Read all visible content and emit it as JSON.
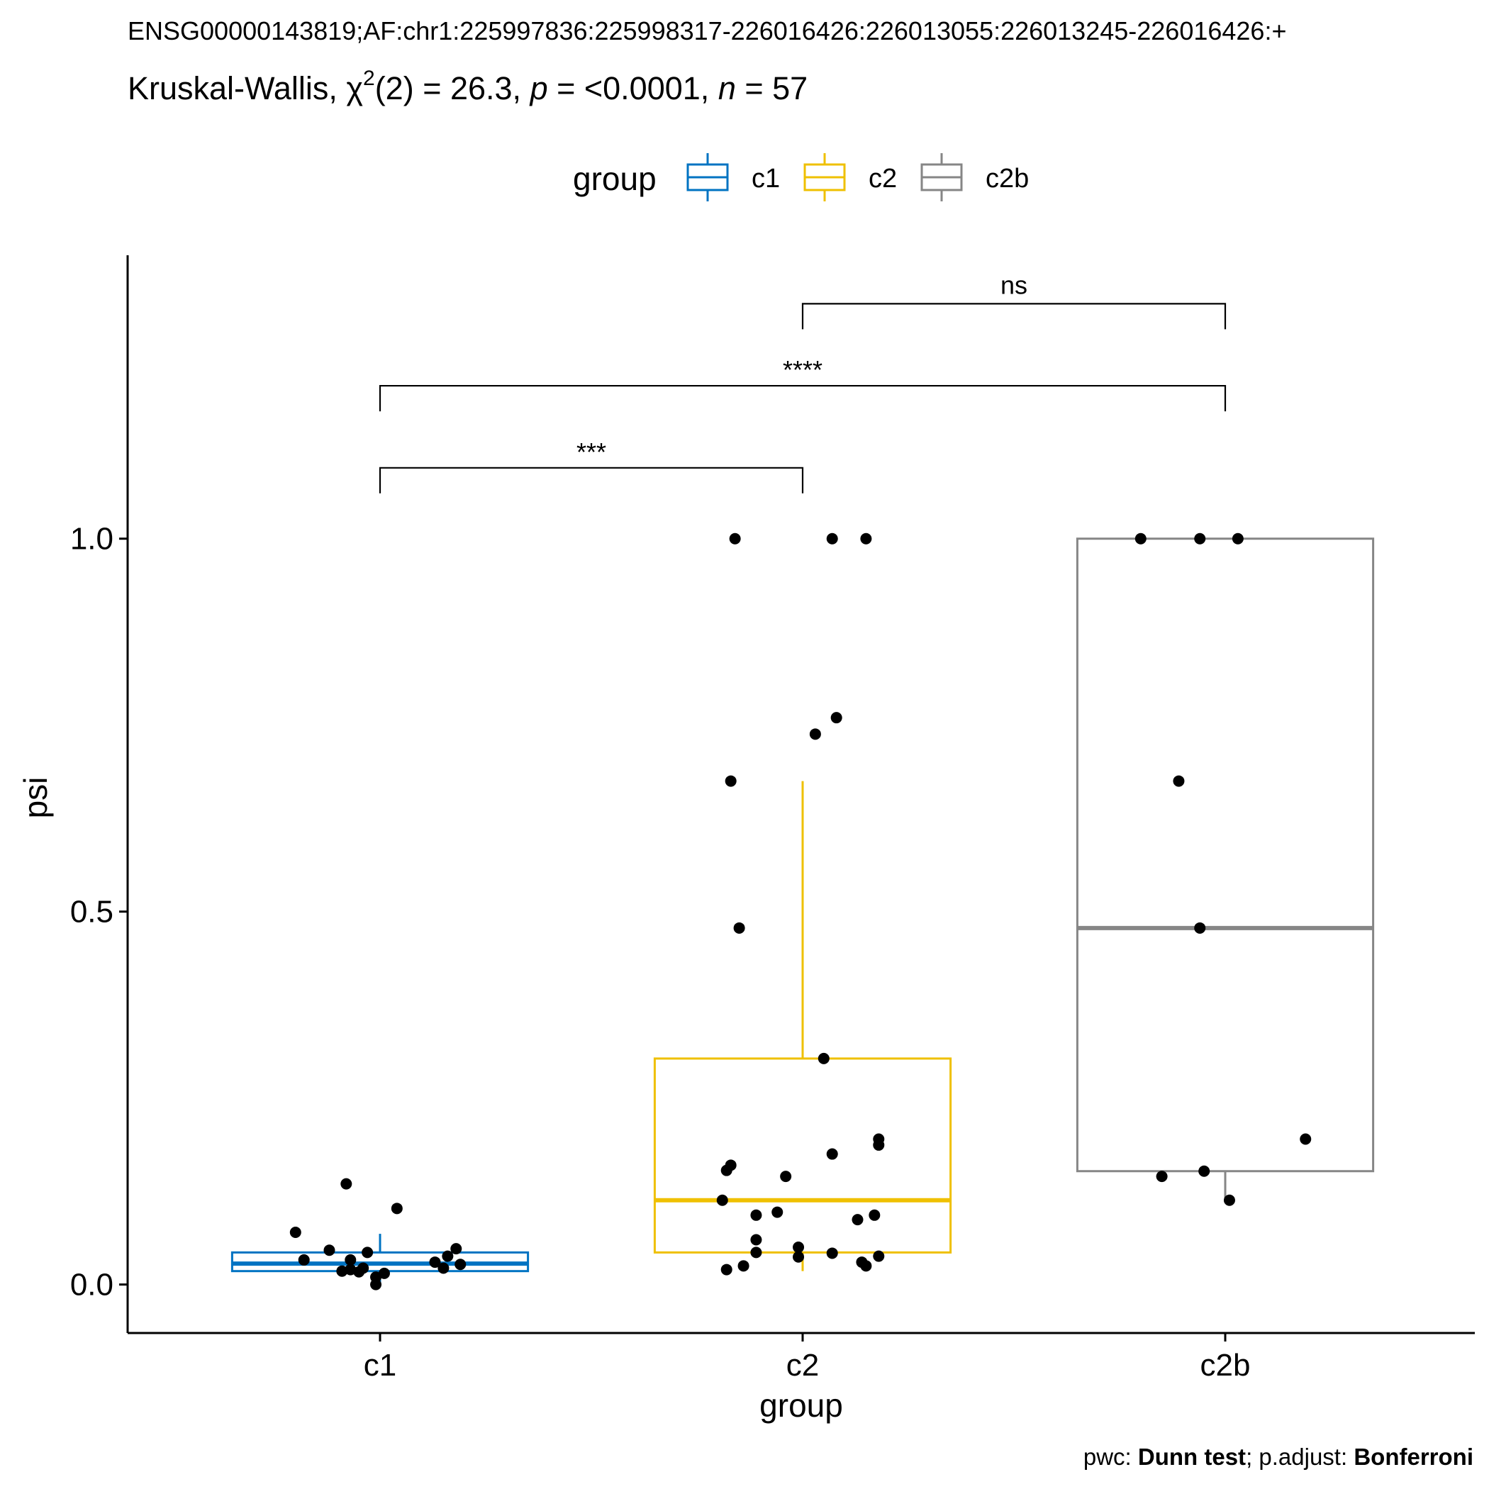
{
  "chart_data": {
    "type": "box",
    "title": "ENSG00000143819;AF:chr1:225997836:225998317-226016426:226013055:226013245-226016426:+",
    "subtitle": {
      "prefix": "Kruskal-Wallis, ",
      "chi": "χ",
      "sup": "2",
      "df": "(2) = 26.3, ",
      "p_label": "p",
      "p_value": " = <0.0001, ",
      "n_label": "n",
      "n_value": " = 57"
    },
    "caption": {
      "pwc_label": "pwc: ",
      "pwc_value": "Dunn test",
      "sep": "; p.adjust: ",
      "adjust_value": "Bonferroni"
    },
    "xlabel": "group",
    "ylabel": "psi",
    "ylim": [
      -0.065,
      1.38
    ],
    "yticks": [
      0.0,
      0.5,
      1.0
    ],
    "ytick_labels": [
      "0.0",
      "0.5",
      "1.0"
    ],
    "categories": [
      "c1",
      "c2",
      "c2b"
    ],
    "legend": {
      "title": "group",
      "position": "top",
      "entries": [
        "c1",
        "c2",
        "c2b"
      ]
    },
    "colors": {
      "c1": "#0073C2",
      "c2": "#EFC000",
      "c2b": "#868686"
    },
    "boxes": [
      {
        "group": "c1",
        "q1": 0.018,
        "median": 0.028,
        "q3": 0.043,
        "whisker_low": 0.0,
        "whisker_high": 0.068
      },
      {
        "group": "c2",
        "q1": 0.043,
        "median": 0.113,
        "q3": 0.303,
        "whisker_low": 0.018,
        "whisker_high": 0.675
      },
      {
        "group": "c2b",
        "q1": 0.152,
        "median": 0.478,
        "q3": 1.0,
        "whisker_low": 0.113,
        "whisker_high": 1.0
      }
    ],
    "points": [
      {
        "group": "c1",
        "x_offset": -0.2,
        "y": 0.07
      },
      {
        "group": "c1",
        "x_offset": -0.08,
        "y": 0.135
      },
      {
        "group": "c1",
        "x_offset": 0.04,
        "y": 0.102
      },
      {
        "group": "c1",
        "x_offset": -0.18,
        "y": 0.033
      },
      {
        "group": "c1",
        "x_offset": -0.12,
        "y": 0.046
      },
      {
        "group": "c1",
        "x_offset": -0.07,
        "y": 0.033
      },
      {
        "group": "c1",
        "x_offset": -0.03,
        "y": 0.043
      },
      {
        "group": "c1",
        "x_offset": -0.09,
        "y": 0.018
      },
      {
        "group": "c1",
        "x_offset": -0.07,
        "y": 0.02
      },
      {
        "group": "c1",
        "x_offset": -0.04,
        "y": 0.022
      },
      {
        "group": "c1",
        "x_offset": -0.05,
        "y": 0.017
      },
      {
        "group": "c1",
        "x_offset": -0.01,
        "y": 0.01
      },
      {
        "group": "c1",
        "x_offset": 0.01,
        "y": 0.015
      },
      {
        "group": "c1",
        "x_offset": -0.01,
        "y": 0.0
      },
      {
        "group": "c1",
        "x_offset": 0.13,
        "y": 0.03
      },
      {
        "group": "c1",
        "x_offset": 0.15,
        "y": 0.022
      },
      {
        "group": "c1",
        "x_offset": 0.16,
        "y": 0.038
      },
      {
        "group": "c1",
        "x_offset": 0.18,
        "y": 0.048
      },
      {
        "group": "c1",
        "x_offset": 0.19,
        "y": 0.027
      },
      {
        "group": "c2",
        "x_offset": -0.16,
        "y": 1.0
      },
      {
        "group": "c2",
        "x_offset": 0.07,
        "y": 1.0
      },
      {
        "group": "c2",
        "x_offset": 0.15,
        "y": 1.0
      },
      {
        "group": "c2",
        "x_offset": 0.08,
        "y": 0.76
      },
      {
        "group": "c2",
        "x_offset": 0.03,
        "y": 0.738
      },
      {
        "group": "c2",
        "x_offset": -0.17,
        "y": 0.675
      },
      {
        "group": "c2",
        "x_offset": -0.15,
        "y": 0.478
      },
      {
        "group": "c2",
        "x_offset": 0.05,
        "y": 0.303
      },
      {
        "group": "c2",
        "x_offset": 0.18,
        "y": 0.195
      },
      {
        "group": "c2",
        "x_offset": 0.18,
        "y": 0.187
      },
      {
        "group": "c2",
        "x_offset": 0.07,
        "y": 0.175
      },
      {
        "group": "c2",
        "x_offset": -0.18,
        "y": 0.153
      },
      {
        "group": "c2",
        "x_offset": -0.17,
        "y": 0.16
      },
      {
        "group": "c2",
        "x_offset": -0.04,
        "y": 0.145
      },
      {
        "group": "c2",
        "x_offset": -0.19,
        "y": 0.113
      },
      {
        "group": "c2",
        "x_offset": -0.06,
        "y": 0.097
      },
      {
        "group": "c2",
        "x_offset": -0.11,
        "y": 0.093
      },
      {
        "group": "c2",
        "x_offset": 0.13,
        "y": 0.087
      },
      {
        "group": "c2",
        "x_offset": 0.17,
        "y": 0.093
      },
      {
        "group": "c2",
        "x_offset": -0.11,
        "y": 0.06
      },
      {
        "group": "c2",
        "x_offset": -0.11,
        "y": 0.043
      },
      {
        "group": "c2",
        "x_offset": -0.01,
        "y": 0.05
      },
      {
        "group": "c2",
        "x_offset": -0.01,
        "y": 0.037
      },
      {
        "group": "c2",
        "x_offset": 0.07,
        "y": 0.042
      },
      {
        "group": "c2",
        "x_offset": 0.18,
        "y": 0.038
      },
      {
        "group": "c2",
        "x_offset": 0.14,
        "y": 0.03
      },
      {
        "group": "c2",
        "x_offset": 0.15,
        "y": 0.025
      },
      {
        "group": "c2",
        "x_offset": -0.14,
        "y": 0.025
      },
      {
        "group": "c2",
        "x_offset": -0.18,
        "y": 0.02
      },
      {
        "group": "c2b",
        "x_offset": -0.2,
        "y": 1.0
      },
      {
        "group": "c2b",
        "x_offset": -0.06,
        "y": 1.0
      },
      {
        "group": "c2b",
        "x_offset": 0.03,
        "y": 1.0
      },
      {
        "group": "c2b",
        "x_offset": -0.11,
        "y": 0.675
      },
      {
        "group": "c2b",
        "x_offset": -0.06,
        "y": 0.478
      },
      {
        "group": "c2b",
        "x_offset": 0.19,
        "y": 0.195
      },
      {
        "group": "c2b",
        "x_offset": -0.05,
        "y": 0.152
      },
      {
        "group": "c2b",
        "x_offset": -0.15,
        "y": 0.145
      },
      {
        "group": "c2b",
        "x_offset": 0.01,
        "y": 0.113
      }
    ],
    "comparisons": [
      {
        "group1": "c1",
        "group2": "c2",
        "label": "***",
        "y": 1.095
      },
      {
        "group1": "c1",
        "group2": "c2b",
        "label": "****",
        "y": 1.205
      },
      {
        "group1": "c2",
        "group2": "c2b",
        "label": "ns",
        "y": 1.315
      }
    ],
    "grid": false
  }
}
